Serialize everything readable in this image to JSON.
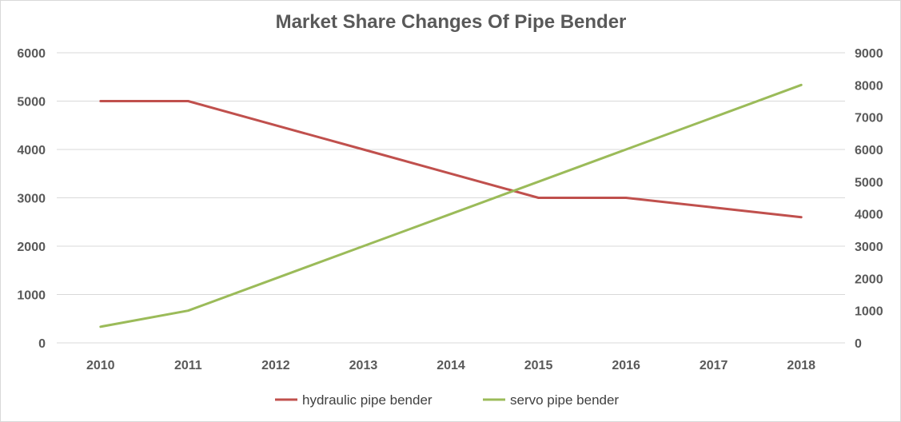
{
  "chart_data": {
    "type": "line",
    "title": "Market Share Changes Of Pipe Bender",
    "categories": [
      "2010",
      "2011",
      "2012",
      "2013",
      "2014",
      "2015",
      "2016",
      "2017",
      "2018"
    ],
    "y_left": {
      "ylim": [
        0,
        6000
      ],
      "ticks": [
        "0",
        "1000",
        "2000",
        "3000",
        "4000",
        "5000",
        "6000"
      ]
    },
    "y_right": {
      "ylim": [
        0,
        9000
      ],
      "ticks": [
        "0",
        "1000",
        "2000",
        "3000",
        "4000",
        "5000",
        "6000",
        "7000",
        "8000",
        "9000"
      ]
    },
    "grid": true,
    "legend_position": "bottom",
    "series": [
      {
        "name": "hydraulic pipe bender",
        "axis": "left",
        "color": "#c0504d",
        "values": [
          5000,
          5000,
          4500,
          4000,
          3500,
          3000,
          3000,
          2800,
          2600
        ]
      },
      {
        "name": "servo pipe bender",
        "axis": "right",
        "color": "#9bbb59",
        "values": [
          500,
          1000,
          2000,
          3000,
          4000,
          5000,
          6000,
          7000,
          8000
        ]
      }
    ]
  }
}
